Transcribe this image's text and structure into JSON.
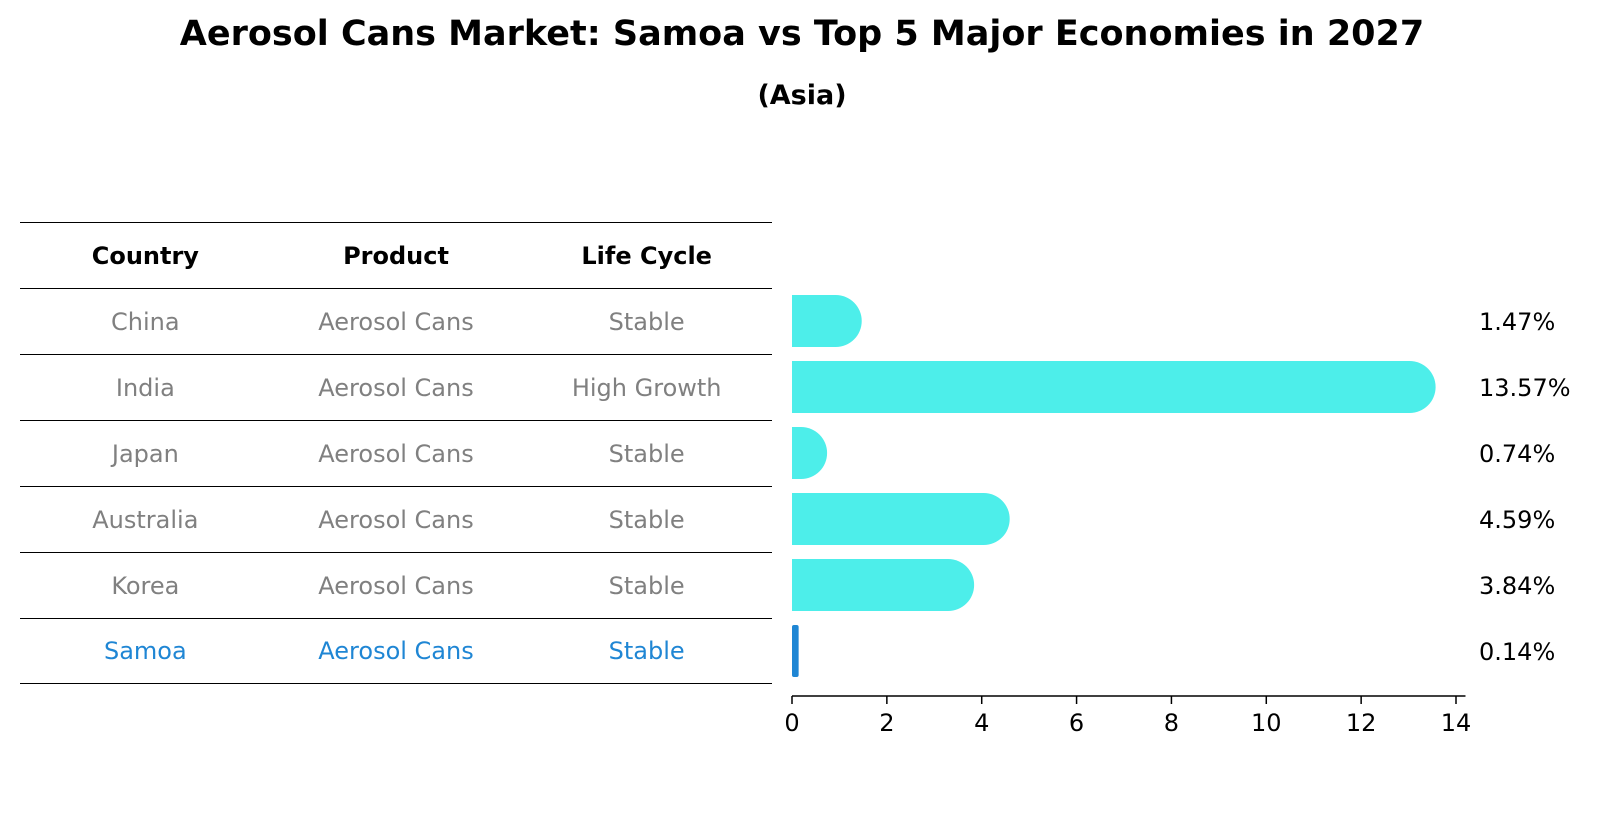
{
  "chart_data": {
    "type": "bar",
    "orientation": "horizontal",
    "title": "Aerosol Cans Market: Samoa vs Top 5 Major Economies in 2027",
    "subtitle": "(Asia)",
    "categories": [
      "China",
      "India",
      "Japan",
      "Australia",
      "Korea",
      "Samoa"
    ],
    "values": [
      1.47,
      13.57,
      0.74,
      4.59,
      3.84,
      0.14
    ],
    "value_labels": [
      "1.47%",
      "13.57%",
      "0.74%",
      "4.59%",
      "3.84%",
      "0.14%"
    ],
    "xlim": [
      0,
      14.2
    ],
    "xticks": [
      0,
      2,
      4,
      6,
      8,
      10,
      12,
      14
    ],
    "grid": false,
    "colors": {
      "bar": "#4deeea",
      "highlight": "#1f86d4"
    },
    "highlight": "Samoa"
  },
  "table": {
    "headers": [
      "Country",
      "Product",
      "Life Cycle"
    ],
    "rows": [
      [
        "China",
        "Aerosol Cans",
        "Stable"
      ],
      [
        "India",
        "Aerosol Cans",
        "High Growth"
      ],
      [
        "Japan",
        "Aerosol Cans",
        "Stable"
      ],
      [
        "Australia",
        "Aerosol Cans",
        "Stable"
      ],
      [
        "Korea",
        "Aerosol Cans",
        "Stable"
      ],
      [
        "Samoa",
        "Aerosol Cans",
        "Stable"
      ]
    ]
  }
}
